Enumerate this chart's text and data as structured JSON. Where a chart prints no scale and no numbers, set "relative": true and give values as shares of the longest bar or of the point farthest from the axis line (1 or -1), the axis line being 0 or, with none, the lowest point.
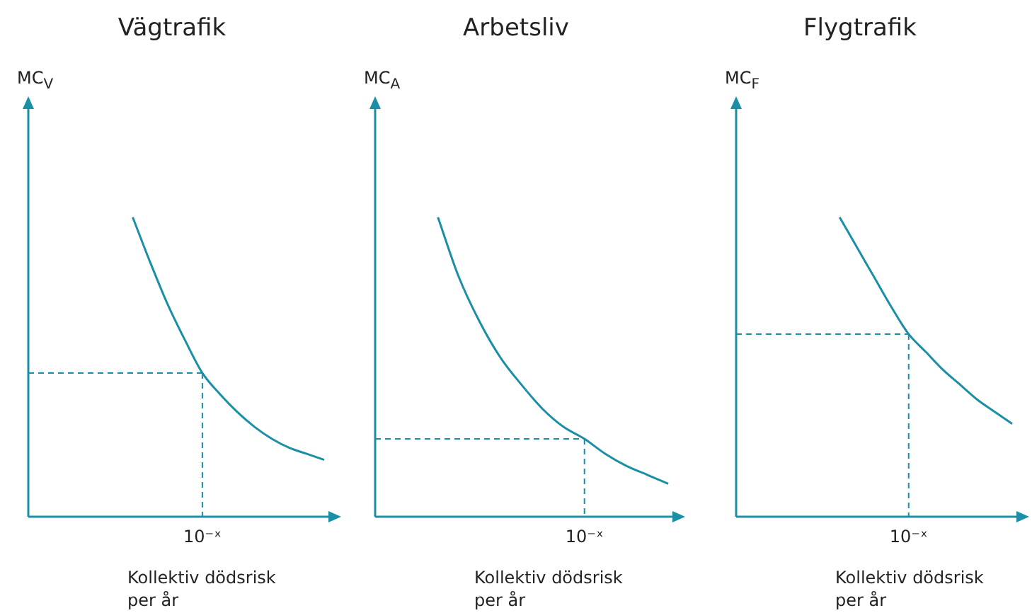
{
  "chart_data": [
    {
      "type": "line",
      "title": "Vägtrafik",
      "ylabel": "MC$_{V}$",
      "xlabel": "Kollektiv dödsrisk per år",
      "relative": true,
      "grid": false,
      "legend": false,
      "annotations": [
        "10⁻ˣ"
      ],
      "categories": [
        null,
        null,
        null,
        null,
        null,
        null,
        null,
        null,
        null,
        null,
        null,
        null,
        null,
        null,
        null,
        null,
        null,
        null
      ],
      "series": [
        {
          "color": "#1b8fa6",
          "values": [
            null,
            null,
            null,
            null,
            null,
            null,
            1.0,
            0.85,
            0.71,
            0.59,
            0.48,
            0.41,
            0.35,
            0.3,
            0.26,
            0.23,
            0.21,
            0.19
          ]
        }
      ],
      "ref_lines": [
        {
          "axis": "y",
          "value": 0.48,
          "line_style": "dashed",
          "color": "#1b8fa6"
        }
      ]
    },
    {
      "type": "line",
      "title": "Arbetsliv",
      "ylabel": "MC$_{A}$",
      "xlabel": "Kollektiv dödsrisk per år",
      "relative": true,
      "grid": false,
      "legend": false,
      "annotations": [
        "10⁻ˣ"
      ],
      "categories": [
        null,
        null,
        null,
        null,
        null,
        null,
        null,
        null,
        null,
        null,
        null,
        null,
        null,
        null,
        null
      ],
      "series": [
        {
          "color": "#1b8fa6",
          "values": [
            null,
            null,
            null,
            1.0,
            0.8,
            0.65,
            0.53,
            0.44,
            0.36,
            0.3,
            0.26,
            0.21,
            0.17,
            0.14,
            0.11
          ]
        }
      ],
      "ref_lines": [
        {
          "axis": "y",
          "value": 0.26,
          "line_style": "dashed",
          "color": "#1b8fa6"
        }
      ]
    },
    {
      "type": "line",
      "title": "Flygtrafik",
      "ylabel": "MC$_{F}$",
      "xlabel": "Kollektiv dödsrisk per år",
      "relative": true,
      "grid": false,
      "legend": false,
      "annotations": [
        "10⁻ˣ"
      ],
      "categories": [
        null,
        null,
        null,
        null,
        null,
        null,
        null,
        null,
        null,
        null,
        null,
        null,
        null,
        null,
        null,
        null,
        null
      ],
      "series": [
        {
          "color": "#1b8fa6",
          "values": [
            null,
            null,
            null,
            null,
            null,
            null,
            1.0,
            0.9,
            0.8,
            0.7,
            0.61,
            0.55,
            0.49,
            0.44,
            0.39,
            0.35,
            0.31
          ]
        }
      ],
      "ref_lines": [
        {
          "axis": "y",
          "value": 0.61,
          "line_style": "dashed",
          "color": "#1b8fa6"
        }
      ]
    }
  ]
}
